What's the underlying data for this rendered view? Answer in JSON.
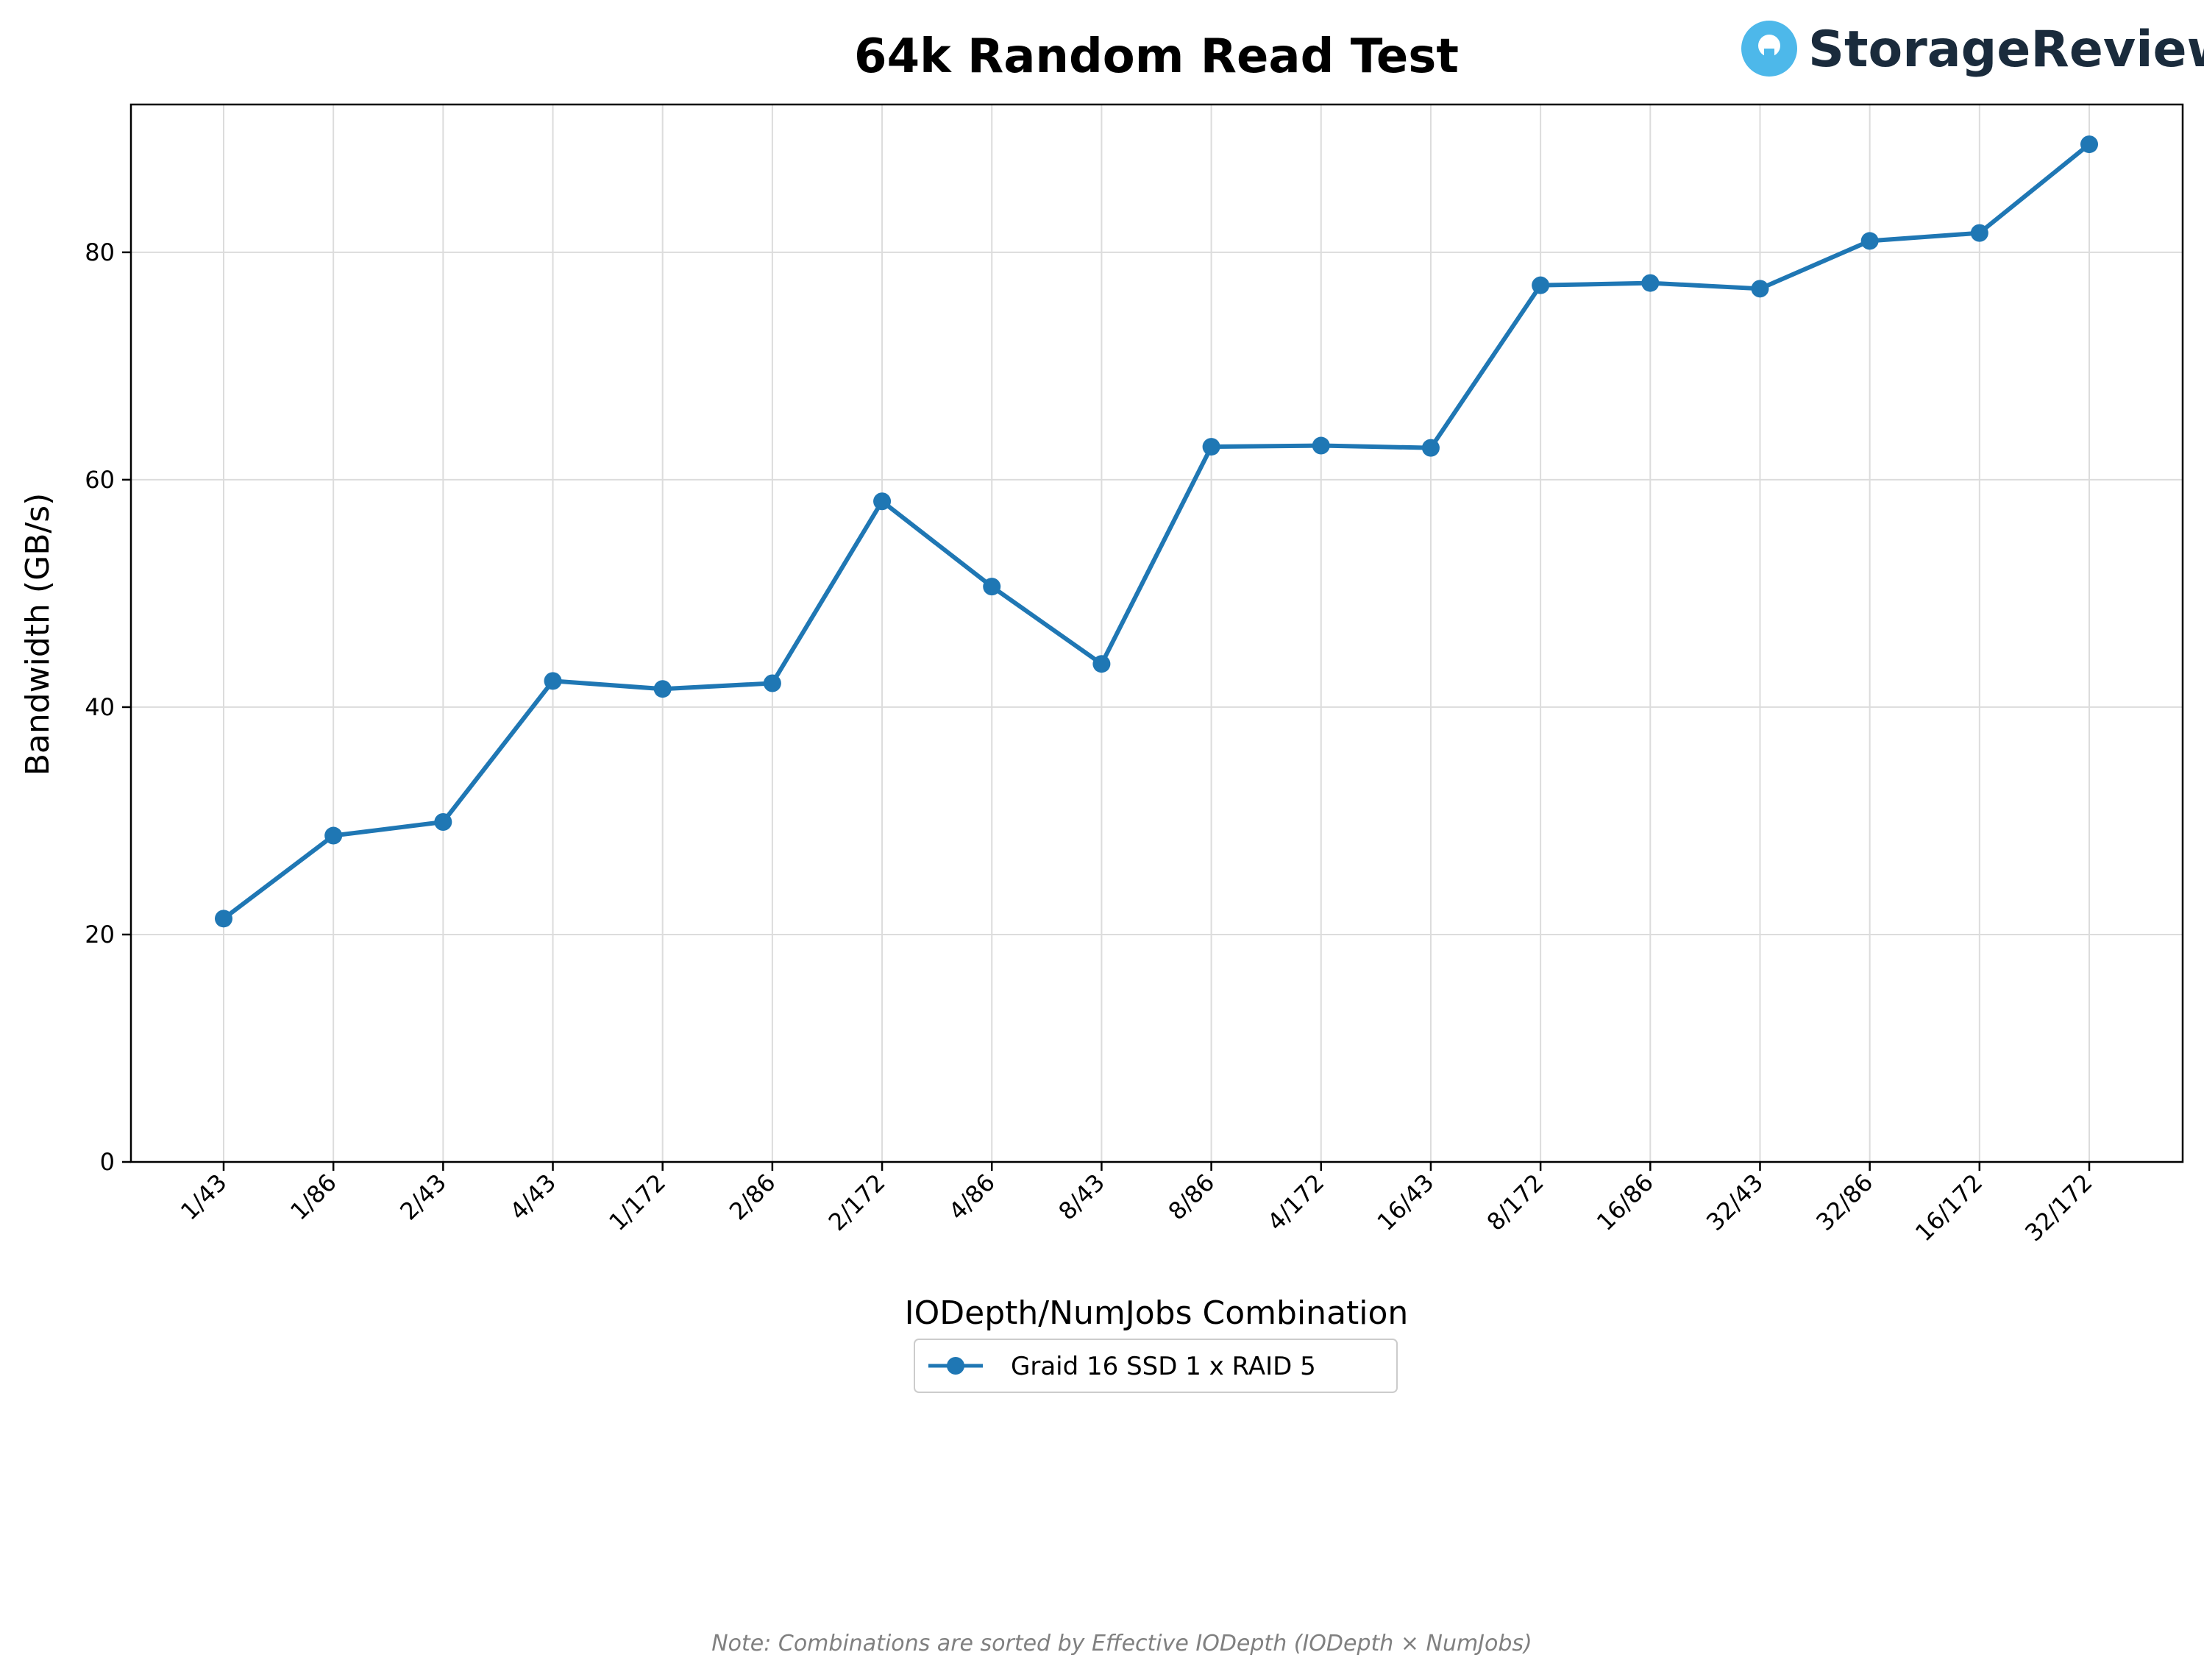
{
  "logo": {
    "text": "StorageReview",
    "accent": "#4db8ea"
  },
  "note": "Note: Combinations are sorted by Effective IODepth (IODepth × NumJobs)",
  "chart_data": {
    "type": "line",
    "title": "64k Random Read Test",
    "xlabel": "IODepth/NumJobs Combination",
    "ylabel": "Bandwidth (GB/s)",
    "ylim": [
      0,
      93
    ],
    "yticks": [
      0,
      20,
      40,
      60,
      80
    ],
    "grid": true,
    "legend_placement": "below",
    "categories": [
      "1/43",
      "1/86",
      "2/43",
      "4/43",
      "1/172",
      "2/86",
      "2/172",
      "4/86",
      "8/43",
      "8/86",
      "4/172",
      "16/43",
      "8/172",
      "16/86",
      "32/43",
      "32/86",
      "16/172",
      "32/172"
    ],
    "series": [
      {
        "name": "Graid 16 SSD 1 x RAID 5",
        "color": "#1f77b4",
        "values": [
          21.4,
          28.7,
          29.9,
          42.3,
          41.6,
          42.1,
          58.1,
          50.6,
          43.8,
          62.9,
          63.0,
          62.8,
          77.1,
          77.3,
          76.8,
          81.0,
          81.7,
          89.5
        ]
      }
    ]
  }
}
